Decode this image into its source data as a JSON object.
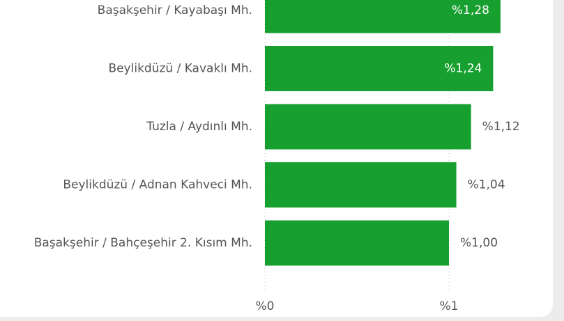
{
  "chart_data": {
    "type": "bar",
    "orientation": "horizontal",
    "categories": [
      "Başakşehir / Kayabaşı Mh.",
      "Beylikdüzü / Kavaklı Mh.",
      "Tuzla / Aydınlı Mh.",
      "Beylikdüzü / Adnan Kahveci Mh.",
      "Başakşehir / Bahçeşehir 2. Kısım Mh."
    ],
    "values": [
      1.28,
      1.24,
      1.12,
      1.04,
      1.0
    ],
    "value_labels": [
      "%1,28",
      "%1,24",
      "%1,12",
      "%1,04",
      "%1,00"
    ],
    "color": "#17a02f",
    "xlim": [
      0,
      1.5
    ],
    "xticks": [
      {
        "value": 0,
        "label": "%0"
      },
      {
        "value": 1,
        "label": "%1"
      }
    ],
    "grid": true
  }
}
